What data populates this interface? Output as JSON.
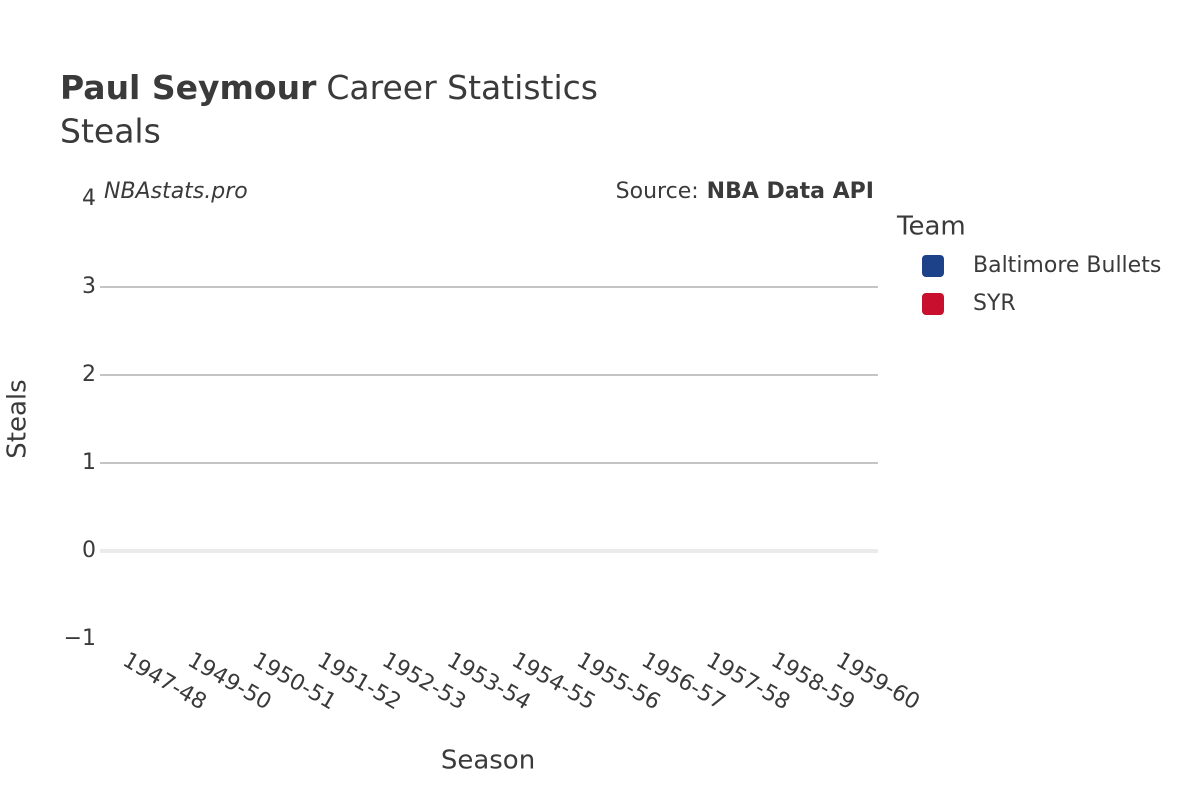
{
  "chart_data": {
    "type": "line",
    "title": {
      "player": "Paul Seymour",
      "rest": "Career Statistics"
    },
    "subtitle": "Steals",
    "annotations": {
      "site": "NBAstats.pro",
      "source_label": "Source:",
      "source": "NBA Data API"
    },
    "x_label": "Season",
    "y_label": "Steals",
    "legend_title": "Team",
    "categories": [
      "1947-48",
      "1949-50",
      "1950-51",
      "1951-52",
      "1952-53",
      "1953-54",
      "1954-55",
      "1955-56",
      "1956-57",
      "1957-58",
      "1958-59",
      "1959-60"
    ],
    "series": [
      {
        "name": "Baltimore Bullets",
        "color": "#1d428a",
        "values": [
          null,
          null,
          null,
          null,
          null,
          null,
          null,
          null,
          null,
          null,
          null,
          null
        ]
      },
      {
        "name": "SYR",
        "color": "#c8102e",
        "values": [
          null,
          null,
          null,
          null,
          null,
          null,
          null,
          null,
          null,
          null,
          null,
          null
        ]
      }
    ],
    "ylim": [
      -1,
      4
    ],
    "yticks": [
      {
        "value": -1,
        "label": "−1"
      },
      0,
      1,
      2,
      3,
      4
    ],
    "grid": true
  }
}
